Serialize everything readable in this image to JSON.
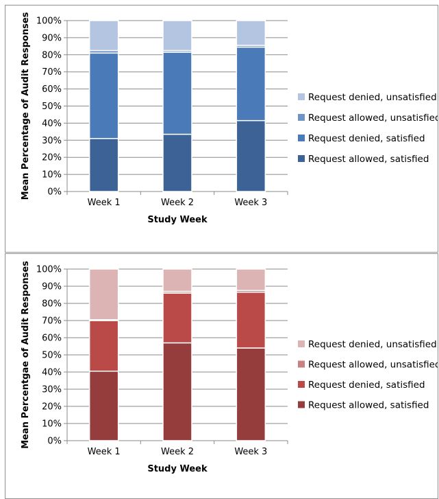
{
  "chart_data": [
    {
      "type": "bar",
      "stacked": true,
      "percent_stacked": true,
      "categories": [
        "Week 1",
        "Week 2",
        "Week 3"
      ],
      "series": [
        {
          "name": "Request allowed, satisfied",
          "color": "#3d6295",
          "values": [
            31,
            33.5,
            41.5
          ]
        },
        {
          "name": "Request denied, satisfied",
          "color": "#4a7ab8",
          "values": [
            50,
            48,
            43
          ]
        },
        {
          "name": "Request allowed, unsatisfied",
          "color": "#6f94c7",
          "values": [
            1.5,
            1,
            1
          ]
        },
        {
          "name": "Request denied, unsatisfied",
          "color": "#b4c5e2",
          "values": [
            17.5,
            17.5,
            14.5
          ]
        }
      ],
      "xlabel": "Study Week",
      "ylabel": "Mean Percentage of Audit Responses",
      "ylim": [
        0,
        100
      ],
      "yticks": [
        "0%",
        "10%",
        "20%",
        "30%",
        "40%",
        "50%",
        "60%",
        "70%",
        "80%",
        "90%",
        "100%"
      ],
      "grid": true,
      "legend_position": "right"
    },
    {
      "type": "bar",
      "stacked": true,
      "percent_stacked": true,
      "categories": [
        "Week 1",
        "Week 2",
        "Week 3"
      ],
      "series": [
        {
          "name": "Request allowed, satisfied",
          "color": "#953c3c",
          "values": [
            40.5,
            57,
            54
          ]
        },
        {
          "name": "Request denied, satisfied",
          "color": "#ba4a48",
          "values": [
            29.5,
            29,
            32.5
          ]
        },
        {
          "name": "Request allowed, unsatisfied",
          "color": "#c98181",
          "values": [
            0.5,
            1,
            1
          ]
        },
        {
          "name": "Request denied, unsatisfied",
          "color": "#dcb4b4",
          "values": [
            29.5,
            13,
            12.5
          ]
        }
      ],
      "xlabel": "Study Week",
      "ylabel": "Mean Percentgae of Audit Responses",
      "ylim": [
        0,
        100
      ],
      "yticks": [
        "0%",
        "10%",
        "20%",
        "30%",
        "40%",
        "50%",
        "60%",
        "70%",
        "80%",
        "90%",
        "100%"
      ],
      "grid": true,
      "legend_position": "right"
    }
  ]
}
